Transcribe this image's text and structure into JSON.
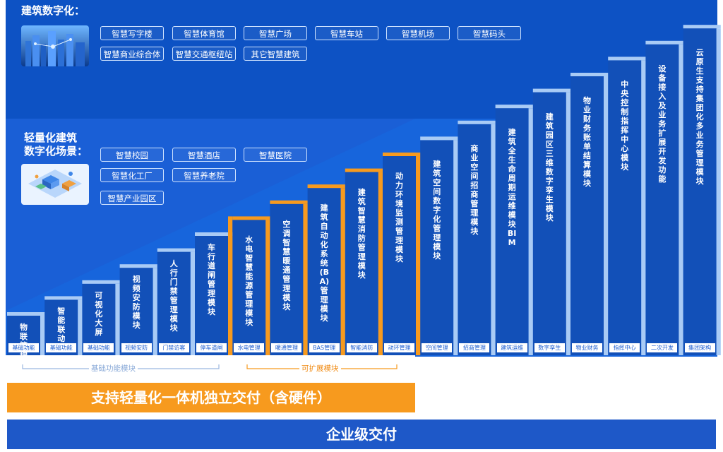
{
  "colors": {
    "dark_blue": "#0d52c4",
    "mid_blue": "#1765dc",
    "column_blue": "#1250b8",
    "orange": "#f79a1e",
    "light_blue": "#a9cbf5",
    "bottom_bar": "#1e58c8",
    "white": "#ffffff"
  },
  "top_section": {
    "title": "建筑数字化：",
    "image_icon": "smart-city-image",
    "tags_row1": [
      "智慧写字楼",
      "智慧体育馆",
      "智慧广场",
      "智慧车站",
      "智慧机场",
      "智慧码头"
    ],
    "tags_row2": [
      "智慧商业综合体",
      "智慧交通枢纽站",
      "其它智慧建筑"
    ]
  },
  "light_section": {
    "title_line1": "轻量化建筑",
    "title_line2": "数字化场景：",
    "image_icon": "isometric-campus-image",
    "tags": [
      "智慧校园",
      "智慧酒店",
      "智慧医院",
      "智慧化工厂",
      "智慧养老院",
      "智慧产业园区"
    ]
  },
  "columns": [
    {
      "title": "物联管理",
      "footer": "基础功能",
      "group": "base"
    },
    {
      "title": "智能联动",
      "footer": "基础功能",
      "group": "base"
    },
    {
      "title": "可视化大屏",
      "footer": "基础功能",
      "group": "base"
    },
    {
      "title": "视频安防模块",
      "footer": "视频安防",
      "group": "base"
    },
    {
      "title": "人行门禁管理模块",
      "footer": "门禁访客",
      "group": "base"
    },
    {
      "title": "车行道闸管理模块",
      "footer": "停车道闸",
      "group": "base"
    },
    {
      "title": "水电智慧能源管理模块",
      "footer": "水电管理",
      "group": "extend"
    },
    {
      "title": "空调智慧暖通管理模块",
      "footer": "暖通管理",
      "group": "extend"
    },
    {
      "title": "建筑自动化系统(BA)管理模块",
      "footer": "BAS管理",
      "group": "extend"
    },
    {
      "title": "建筑智慧消防管理模块",
      "footer": "智能消防",
      "group": "extend"
    },
    {
      "title": "动力环境监测管理模块",
      "footer": "动环管理",
      "group": "extend"
    },
    {
      "title": "建筑空间数字化管理模块",
      "footer": "空间管理",
      "group": "enterprise"
    },
    {
      "title": "商业空间招商管理模块",
      "footer": "招商管理",
      "group": "enterprise"
    },
    {
      "title": "建筑全生命周期运维模块BIM",
      "footer": "建筑运维",
      "group": "enterprise"
    },
    {
      "title": "建筑园区三维数字孪生模块",
      "footer": "数字孪生",
      "group": "enterprise"
    },
    {
      "title": "物业财务账单结算模块",
      "footer": "物业财务",
      "group": "enterprise"
    },
    {
      "title": "中央控制指挥中心模块",
      "footer": "指挥中心",
      "group": "enterprise"
    },
    {
      "title": "设备接入及业务扩展开发功能",
      "footer": "二次开发",
      "group": "enterprise"
    },
    {
      "title": "云原生支持集团化多业务管理模块",
      "footer": "集团架构",
      "group": "enterprise"
    }
  ],
  "brackets": {
    "base_label": "基础功能模块",
    "extend_label": "可扩展模块"
  },
  "bars": {
    "light_delivery": "支持轻量化一体机独立交付（含硬件）",
    "enterprise_delivery": "企业级交付"
  }
}
